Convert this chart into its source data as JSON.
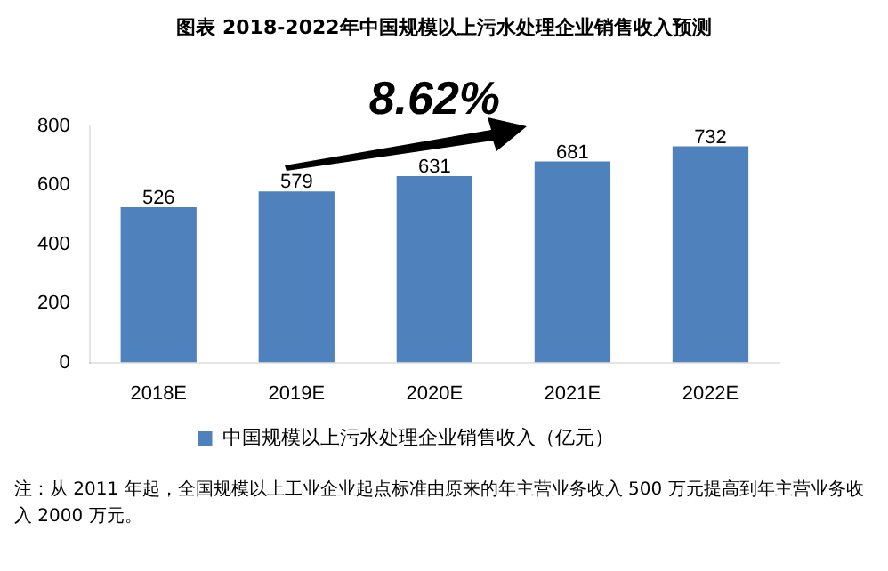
{
  "chart_data": {
    "type": "bar",
    "title": "图表 2018-2022年中国规模以上污水处理企业销售收入预测",
    "categories": [
      "2018E",
      "2019E",
      "2020E",
      "2021E",
      "2022E"
    ],
    "series": [
      {
        "name": "中国规模以上污水处理企业销售收入（亿元）",
        "color": "#4f81bd",
        "values": [
          526,
          579,
          631,
          681,
          732
        ]
      }
    ],
    "ylim": [
      0,
      800
    ],
    "yticks": [
      0,
      200,
      400,
      600,
      800
    ],
    "data_labels": true,
    "legend": "bottom",
    "annotations": [
      "8.62%",
      "注：从 2011 年起，全国规模以上工业企业起点标准由原来的年主营业务收入 500 万元提高到年主营业务收入 2000 万元。"
    ]
  }
}
